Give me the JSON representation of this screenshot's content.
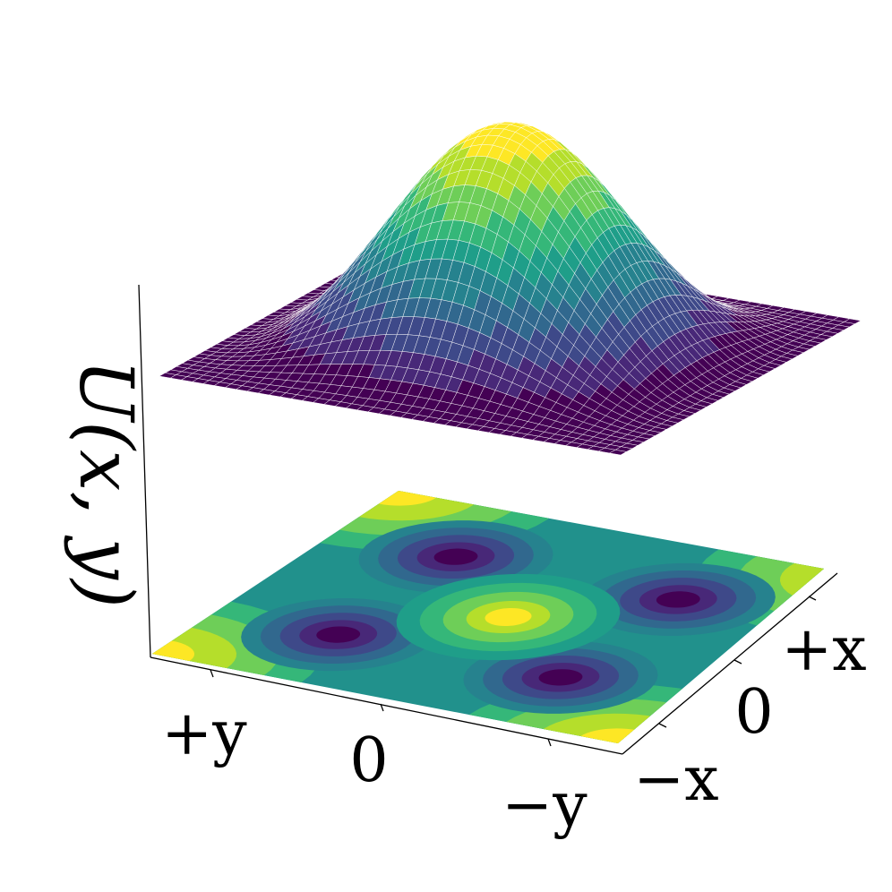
{
  "chart_data": {
    "type": "surface",
    "zlabel": "U(x, y)",
    "x_ticks": [
      "−x",
      "0",
      "+x"
    ],
    "y_ticks": [
      "+y",
      "0",
      "−y"
    ],
    "colormap": "viridis",
    "surface": {
      "function": "U(x,y) = cos(x) + cos(y) + cos(x)cos(y)",
      "x_range": [
        -3.1416,
        3.1416
      ],
      "y_range": [
        -3.1416,
        3.1416
      ],
      "grid_lines": 42,
      "edge_color": "#ffffff"
    },
    "contour_projection": {
      "levels": 10,
      "minima": [
        [
          -1.5,
          -1.5
        ],
        [
          -1.5,
          1.5
        ],
        [
          1.5,
          -1.5
        ],
        [
          1.5,
          1.5
        ]
      ],
      "maximum": [
        0,
        0
      ]
    },
    "grid": false
  }
}
